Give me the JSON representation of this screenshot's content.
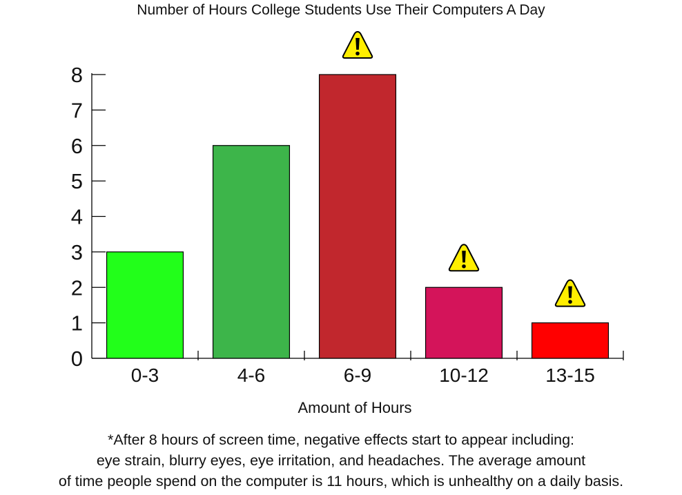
{
  "chart_data": {
    "type": "bar",
    "title": "Number of Hours College Students Use Their Computers A Day",
    "xlabel": "Amount of Hours",
    "ylabel": "",
    "categories": [
      "0-3",
      "4-6",
      "6-9",
      "10-12",
      "13-15"
    ],
    "values": [
      3,
      6,
      8,
      2,
      1
    ],
    "colors": [
      "#22ff1a",
      "#3db54a",
      "#c1272d",
      "#d4145a",
      "#ff0000"
    ],
    "warning_marks": [
      false,
      false,
      true,
      true,
      true
    ],
    "warning_icon": "warning-triangle-icon",
    "ylim": [
      0,
      8
    ],
    "yticks": [
      0,
      1,
      2,
      3,
      4,
      5,
      6,
      7,
      8
    ],
    "grid": false,
    "legend": "none"
  },
  "footnote": {
    "lines": [
      "*After 8 hours of screen time, negative effects start to appear including:",
      "eye strain, blurry eyes, eye irritation, and headaches. The average amount",
      "of time people spend on the computer is 11 hours, which is unhealthy on a daily basis."
    ]
  }
}
